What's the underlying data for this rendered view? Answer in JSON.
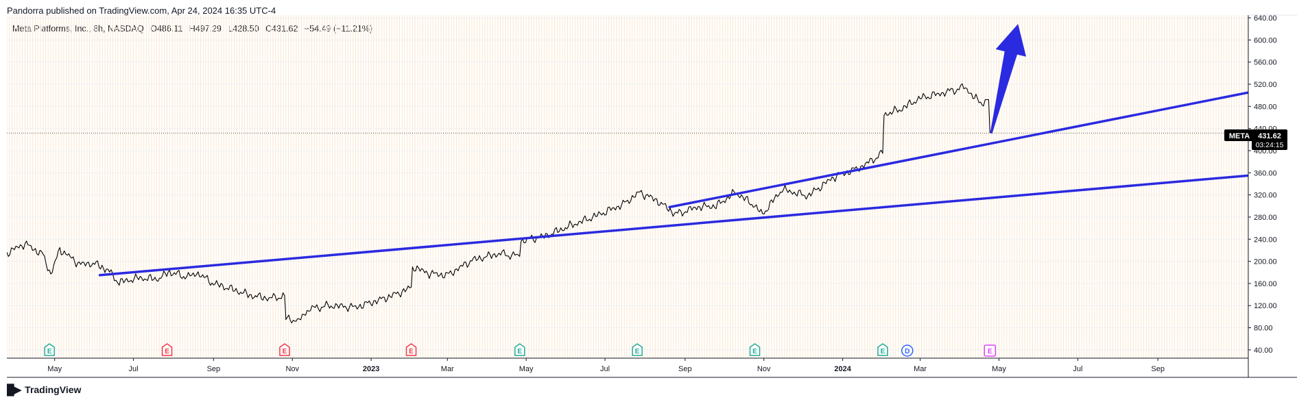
{
  "header": {
    "published": "Pandorra published on TradingView.com, Apr 24, 2024 16:35 UTC-4"
  },
  "legend": {
    "title": "Meta Platforms, Inc., 8h, NASDAQ",
    "open": "O486.11",
    "high": "H497.29",
    "low": "L428.50",
    "close": "C431.62",
    "change": "−54.49 (−11.21%)"
  },
  "price_tag": {
    "symbol": "META",
    "price": "431.62",
    "countdown": "03:24:15"
  },
  "footer": {
    "brand": "TradingView"
  },
  "colors": {
    "line": "#2a2ae0",
    "price": "#000000",
    "grid_vertical": "#fbe6cf",
    "grid_horizontal": "#eef0f3",
    "earnings": "#22ab94",
    "earnings_miss": "#f23645",
    "dividend": "#2962ff",
    "upcoming": "#e040fb"
  },
  "chart_data": {
    "type": "line",
    "x_axis_labels": [
      "May",
      "Jul",
      "Sep",
      "Nov",
      "2023",
      "Mar",
      "May",
      "Jul",
      "Sep",
      "Nov",
      "2024",
      "Mar",
      "May",
      "Jul",
      "Sep"
    ],
    "y_ticks": [
      40,
      80,
      120,
      160,
      200,
      240,
      280,
      320,
      360,
      400,
      440,
      480,
      520,
      560,
      600,
      640
    ],
    "ylim": [
      25,
      645
    ],
    "xlim": [
      "2022-03-25",
      "2024-11-10"
    ],
    "series": [
      {
        "type": "price",
        "points": [
          [
            "2022-03-25",
            215
          ],
          [
            "2022-04-08",
            232
          ],
          [
            "2022-04-22",
            212
          ],
          [
            "2022-04-28",
            176
          ],
          [
            "2022-05-05",
            222
          ],
          [
            "2022-05-20",
            195
          ],
          [
            "2022-06-01",
            196
          ],
          [
            "2022-06-10",
            186
          ],
          [
            "2022-06-20",
            162
          ],
          [
            "2022-07-05",
            170
          ],
          [
            "2022-07-20",
            168
          ],
          [
            "2022-07-29",
            181
          ],
          [
            "2022-08-10",
            172
          ],
          [
            "2022-08-20",
            178
          ],
          [
            "2022-09-01",
            160
          ],
          [
            "2022-09-15",
            150
          ],
          [
            "2022-09-30",
            138
          ],
          [
            "2022-10-15",
            133
          ],
          [
            "2022-10-26",
            138
          ],
          [
            "2022-10-27",
            98
          ],
          [
            "2022-11-05",
            92
          ],
          [
            "2022-11-15",
            115
          ],
          [
            "2022-12-01",
            120
          ],
          [
            "2022-12-20",
            117
          ],
          [
            "2023-01-10",
            132
          ],
          [
            "2023-01-25",
            145
          ],
          [
            "2023-02-01",
            153
          ],
          [
            "2023-02-02",
            190
          ],
          [
            "2023-02-15",
            178
          ],
          [
            "2023-03-01",
            175
          ],
          [
            "2023-03-20",
            202
          ],
          [
            "2023-04-10",
            214
          ],
          [
            "2023-04-26",
            209
          ],
          [
            "2023-04-27",
            237
          ],
          [
            "2023-05-15",
            245
          ],
          [
            "2023-06-05",
            265
          ],
          [
            "2023-06-25",
            283
          ],
          [
            "2023-07-15",
            303
          ],
          [
            "2023-07-28",
            325
          ],
          [
            "2023-08-10",
            310
          ],
          [
            "2023-08-25",
            285
          ],
          [
            "2023-09-10",
            298
          ],
          [
            "2023-09-25",
            300
          ],
          [
            "2023-10-10",
            325
          ],
          [
            "2023-10-25",
            300
          ],
          [
            "2023-10-31",
            285
          ],
          [
            "2023-11-15",
            330
          ],
          [
            "2023-12-05",
            318
          ],
          [
            "2023-12-25",
            352
          ],
          [
            "2024-01-15",
            370
          ],
          [
            "2024-02-01",
            395
          ],
          [
            "2024-02-02",
            465
          ],
          [
            "2024-02-15",
            475
          ],
          [
            "2024-03-01",
            495
          ],
          [
            "2024-03-20",
            505
          ],
          [
            "2024-04-05",
            515
          ],
          [
            "2024-04-12",
            495
          ],
          [
            "2024-04-19",
            485
          ],
          [
            "2024-04-23",
            492
          ],
          [
            "2024-04-24",
            432
          ]
        ]
      },
      {
        "type": "trendline",
        "points": [
          [
            "2022-06-05",
            175
          ],
          [
            "2024-11-10",
            355
          ]
        ]
      },
      {
        "type": "trendline",
        "points": [
          [
            "2023-08-20",
            298
          ],
          [
            "2024-11-10",
            505
          ]
        ]
      }
    ],
    "annotations": [
      {
        "type": "arrow",
        "from": [
          "2024-04-25",
          432
        ],
        "to": [
          "2024-05-05",
          640
        ]
      },
      {
        "type": "price_line",
        "y": 431.62
      }
    ],
    "events": [
      {
        "x": "2022-04-27",
        "label": "E",
        "kind": "earnings"
      },
      {
        "x": "2022-07-27",
        "label": "E",
        "kind": "earnings_miss"
      },
      {
        "x": "2022-10-26",
        "label": "E",
        "kind": "earnings_miss"
      },
      {
        "x": "2023-02-01",
        "label": "E",
        "kind": "earnings_miss"
      },
      {
        "x": "2023-04-26",
        "label": "E",
        "kind": "earnings"
      },
      {
        "x": "2023-07-26",
        "label": "E",
        "kind": "earnings"
      },
      {
        "x": "2023-10-25",
        "label": "E",
        "kind": "earnings"
      },
      {
        "x": "2024-02-01",
        "label": "E",
        "kind": "earnings"
      },
      {
        "x": "2024-02-20",
        "label": "D",
        "kind": "dividend"
      },
      {
        "x": "2024-04-24",
        "label": "E",
        "kind": "upcoming"
      }
    ]
  }
}
